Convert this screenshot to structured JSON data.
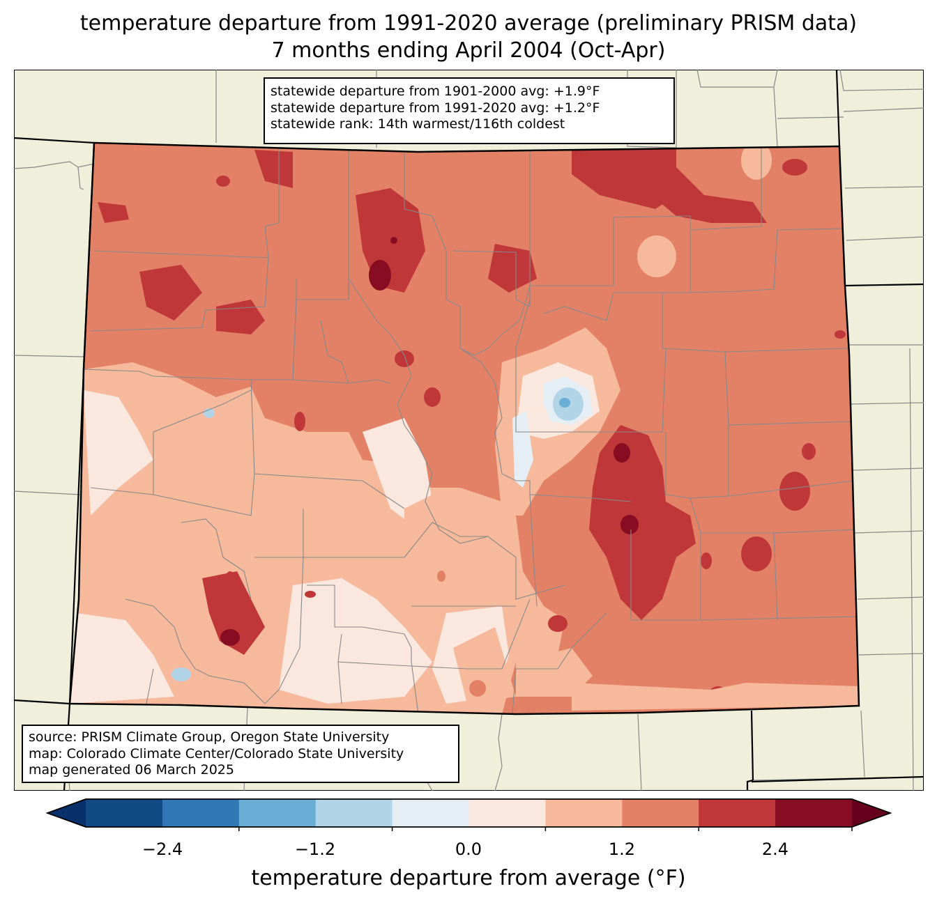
{
  "title": {
    "line1": "temperature departure from 1991-2020 average (preliminary PRISM data)",
    "line2": "7 months ending April 2004 (Oct-Apr)"
  },
  "stats": {
    "line1": "statewide departure from 1901-2000 avg: +1.9°F",
    "line2": "statewide departure from 1991-2020 avg: +1.2°F",
    "line3": "statewide rank: 14th warmest/116th coldest"
  },
  "source": {
    "line1": "source: PRISM Climate Group, Oregon State University",
    "line2": "map: Colorado Climate Center/Colorado State University",
    "line3": "map generated 06 March 2025"
  },
  "colorbar": {
    "label": "temperature departure from average (°F)",
    "ticks": [
      "−2.4",
      "−1.2",
      "0.0",
      "1.2",
      "2.4"
    ],
    "bins": [
      {
        "color": "#08306b"
      },
      {
        "color": "#124a84"
      },
      {
        "color": "#2f78b5"
      },
      {
        "color": "#6aaed5"
      },
      {
        "color": "#b1d4e7"
      },
      {
        "color": "#e5eef5"
      },
      {
        "color": "#fae8df"
      },
      {
        "color": "#f6b99c"
      },
      {
        "color": "#e38167"
      },
      {
        "color": "#c0373a"
      },
      {
        "color": "#880c22"
      },
      {
        "color": "#67001f"
      }
    ]
  },
  "map_colors": {
    "background": "#efefdb",
    "county_lines": "#888888",
    "state_border": "#000000"
  }
}
